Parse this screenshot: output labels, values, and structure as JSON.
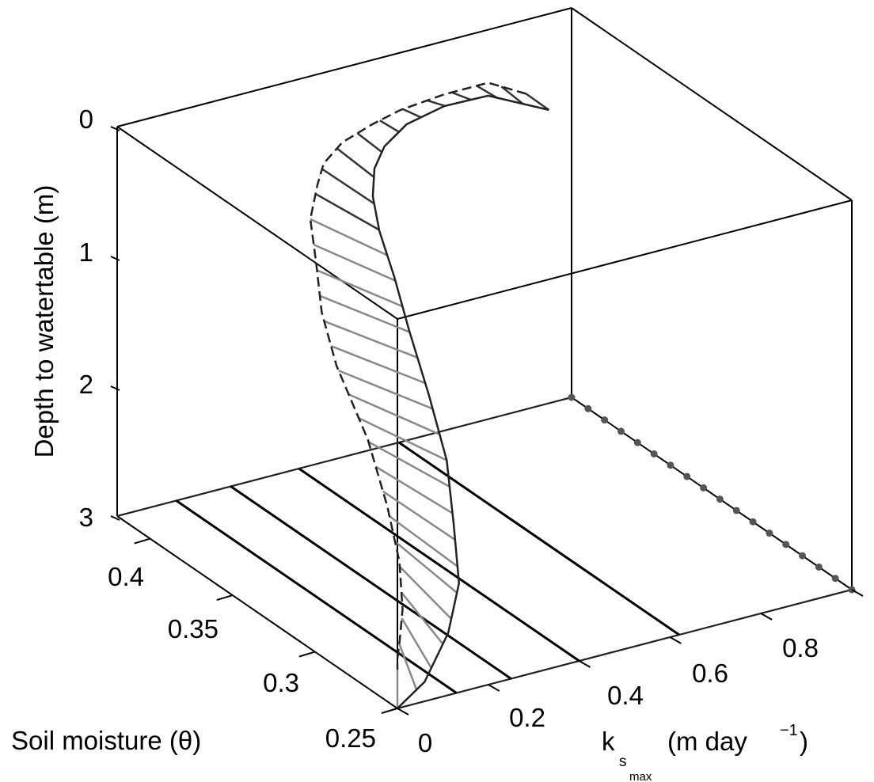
{
  "chart_data": {
    "type": "3d-line",
    "xlabel": "k",
    "xlabel_sub": "s",
    "xlabel_subsub": "max",
    "xlabel_units_pre": "(m day",
    "xlabel_units_sup": "−1",
    "xlabel_units_post": ")",
    "ylabel": "Soil moisture (θ)",
    "zlabel": "Depth to watertable (m)",
    "xlim": [
      0,
      1
    ],
    "ylim": [
      0.25,
      0.42
    ],
    "zlim": [
      0,
      3
    ],
    "z_reversed": true,
    "x_ticks": [
      "0",
      "0.2",
      "0.4",
      "0.6",
      "0.8"
    ],
    "y_ticks": [
      "0.25",
      "0.3",
      "0.35",
      "0.4"
    ],
    "z_ticks": [
      "0",
      "1",
      "2",
      "3"
    ],
    "box": true,
    "grid": false,
    "hatch_count": 30,
    "series": [
      {
        "style": "dashed",
        "color": "#222222",
        "points": [
          [
            0.9,
            0.42,
            0.57
          ],
          [
            0.82,
            0.421,
            0.42
          ],
          [
            0.72,
            0.42,
            0.41
          ],
          [
            0.62,
            0.419,
            0.43
          ],
          [
            0.55,
            0.417,
            0.46
          ],
          [
            0.47,
            0.413,
            0.49
          ],
          [
            0.4,
            0.405,
            0.52
          ],
          [
            0.35,
            0.395,
            0.55
          ],
          [
            0.28,
            0.38,
            0.62
          ],
          [
            0.22,
            0.36,
            0.72
          ],
          [
            0.16,
            0.34,
            0.88
          ],
          [
            0.12,
            0.32,
            1.08
          ],
          [
            0.08,
            0.29,
            1.35
          ],
          [
            0.05,
            0.27,
            1.66
          ],
          [
            0.03,
            0.257,
            1.96
          ],
          [
            0.015,
            0.251,
            2.26
          ],
          [
            0.005,
            0.25,
            2.48
          ],
          [
            0.0,
            0.25,
            2.62
          ],
          [
            0.0,
            0.25,
            2.7
          ]
        ]
      },
      {
        "style": "solid",
        "color": "#222222",
        "points": [
          [
            0.95,
            0.42,
            0.74
          ],
          [
            0.82,
            0.421,
            0.52
          ],
          [
            0.72,
            0.42,
            0.5
          ],
          [
            0.63,
            0.418,
            0.54
          ],
          [
            0.57,
            0.415,
            0.63
          ],
          [
            0.53,
            0.41,
            0.72
          ],
          [
            0.49,
            0.4,
            0.81
          ],
          [
            0.45,
            0.385,
            0.91
          ],
          [
            0.41,
            0.365,
            1.05
          ],
          [
            0.37,
            0.345,
            1.25
          ],
          [
            0.33,
            0.322,
            1.51
          ],
          [
            0.29,
            0.3,
            1.79
          ],
          [
            0.24,
            0.282,
            2.08
          ],
          [
            0.19,
            0.265,
            2.34
          ],
          [
            0.13,
            0.255,
            2.58
          ],
          [
            0.06,
            0.25,
            2.85
          ],
          [
            0.0,
            0.25,
            3.0
          ]
        ]
      },
      {
        "style": "points",
        "color": "#555555",
        "points": [
          [
            1.0,
            0.25,
            3.0
          ],
          [
            1.0,
            0.26,
            3.0
          ],
          [
            1.0,
            0.27,
            3.0
          ],
          [
            1.0,
            0.28,
            3.0
          ],
          [
            1.0,
            0.29,
            3.0
          ],
          [
            1.0,
            0.3,
            3.0
          ],
          [
            1.0,
            0.31,
            3.0
          ],
          [
            1.0,
            0.32,
            3.0
          ],
          [
            1.0,
            0.33,
            3.0
          ],
          [
            1.0,
            0.34,
            3.0
          ],
          [
            1.0,
            0.35,
            3.0
          ],
          [
            1.0,
            0.36,
            3.0
          ],
          [
            1.0,
            0.37,
            3.0
          ],
          [
            1.0,
            0.38,
            3.0
          ],
          [
            1.0,
            0.39,
            3.0
          ],
          [
            1.0,
            0.4,
            3.0
          ],
          [
            1.0,
            0.41,
            3.0
          ],
          [
            1.0,
            0.42,
            3.0
          ]
        ]
      }
    ],
    "floor_projection": {
      "front": [
        [
          0.0,
          0.25,
          3.0
        ],
        [
          0.13,
          0.25,
          3.0
        ],
        [
          0.25,
          0.25,
          3.0
        ],
        [
          0.4,
          0.25,
          3.0
        ],
        [
          0.55,
          0.25,
          3.0
        ],
        [
          0.75,
          0.25,
          3.0
        ],
        [
          1.0,
          0.25,
          3.0
        ]
      ],
      "back": [
        [
          0.0,
          0.42,
          3.0
        ],
        [
          0.13,
          0.42,
          3.0
        ],
        [
          0.25,
          0.42,
          3.0
        ],
        [
          0.4,
          0.42,
          3.0
        ],
        [
          0.55,
          0.42,
          3.0
        ],
        [
          0.75,
          0.42,
          3.0
        ],
        [
          1.0,
          0.42,
          3.0
        ]
      ],
      "rungs_x": [
        0.13,
        0.25,
        0.4,
        0.62
      ]
    }
  }
}
